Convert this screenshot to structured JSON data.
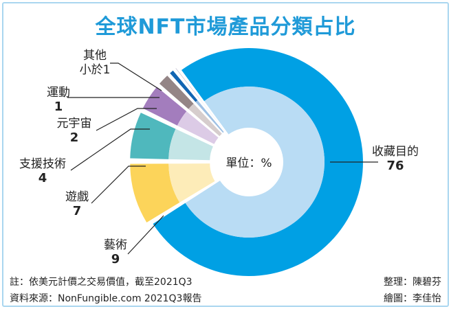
{
  "chart_data": {
    "type": "pie",
    "title": "全球NFT市場產品分類占比",
    "unit_label": "單位：%",
    "categories": [
      "收藏目的",
      "藝術",
      "遊戲",
      "支援技術",
      "元宇宙",
      "運動",
      "其他"
    ],
    "values": [
      76,
      9,
      7,
      4,
      2,
      1,
      0.5
    ],
    "value_labels": [
      "76",
      "9",
      "7",
      "4",
      "2",
      "1",
      "小於1"
    ],
    "colors": [
      "#00a0e4",
      "#fcd45a",
      "#4fb8bd",
      "#a37dbd",
      "#948586",
      "#1165b2",
      "#b9b4c8"
    ],
    "inner_colors": [
      "#b9dcf4",
      "#fdecb8",
      "#c4e5e6",
      "#dccbe6",
      "#d6cdcd",
      "#9ec0e4",
      "#e4e2ea"
    ],
    "hole": true
  },
  "notes": {
    "note": "註：依美元計價之交易價值，截至2021Q3",
    "source": "資料來源：NonFungible.com 2021Q3報告",
    "editor": "整理：陳碧芬",
    "illustrator": "繪圖：李佳怡"
  },
  "colors": {
    "title": "#1f9ad8",
    "frame": "#a9d6ef"
  }
}
